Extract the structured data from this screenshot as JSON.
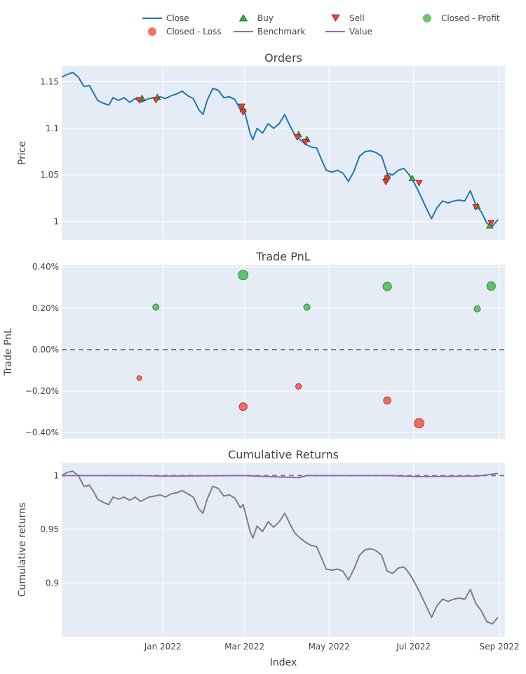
{
  "colors": {
    "plot_bg": "#e5ecf6",
    "grid": "#ffffff",
    "close": "#1f77b4",
    "buy": "#37B13F",
    "sell": "#EA4335",
    "profit": "#37B13F",
    "loss": "#EA4335",
    "benchmark": "#7f7f7f",
    "value": "#9467bd",
    "zero_line": "#808080"
  },
  "legend": {
    "close": "Close",
    "buy": "Buy",
    "sell": "Sell",
    "closed_profit": "Closed - Profit",
    "closed_loss": "Closed - Loss",
    "benchmark": "Benchmark",
    "value": "Value"
  },
  "x_axis": {
    "title": "Index",
    "range": [
      "2021-10-20",
      "2022-09-05"
    ],
    "ticks": [
      {
        "date": "2022-01-01",
        "label": "Jan 2022"
      },
      {
        "date": "2022-03-01",
        "label": "Mar 2022"
      },
      {
        "date": "2022-05-01",
        "label": "May 2022"
      },
      {
        "date": "2022-07-01",
        "label": "Jul 2022"
      },
      {
        "date": "2022-09-01",
        "label": "Sep 2022"
      }
    ]
  },
  "chart_data": [
    {
      "type": "line",
      "title": "Orders",
      "ylabel": "Price",
      "ylim": [
        0.98,
        1.167
      ],
      "yticks": [
        {
          "v": 1.0,
          "label": "1"
        },
        {
          "v": 1.05,
          "label": "1.05"
        },
        {
          "v": 1.1,
          "label": "1.1"
        },
        {
          "v": 1.15,
          "label": "1.15"
        }
      ],
      "series": [
        {
          "name": "Close",
          "points": [
            [
              "2021-10-20",
              1.155
            ],
            [
              "2021-10-24",
              1.158
            ],
            [
              "2021-10-28",
              1.16
            ],
            [
              "2021-11-01",
              1.155
            ],
            [
              "2021-11-05",
              1.145
            ],
            [
              "2021-11-09",
              1.146
            ],
            [
              "2021-11-12",
              1.138
            ],
            [
              "2021-11-15",
              1.13
            ],
            [
              "2021-11-19",
              1.127
            ],
            [
              "2021-11-23",
              1.125
            ],
            [
              "2021-11-26",
              1.133
            ],
            [
              "2021-11-30",
              1.13
            ],
            [
              "2021-12-04",
              1.133
            ],
            [
              "2021-12-08",
              1.128
            ],
            [
              "2021-12-12",
              1.132
            ],
            [
              "2021-12-16",
              1.128
            ],
            [
              "2021-12-19",
              1.13
            ],
            [
              "2021-12-22",
              1.132
            ],
            [
              "2021-12-26",
              1.133
            ],
            [
              "2021-12-30",
              1.134
            ],
            [
              "2022-01-03",
              1.132
            ],
            [
              "2022-01-07",
              1.135
            ],
            [
              "2022-01-11",
              1.137
            ],
            [
              "2022-01-15",
              1.14
            ],
            [
              "2022-01-19",
              1.135
            ],
            [
              "2022-01-23",
              1.132
            ],
            [
              "2022-01-27",
              1.12
            ],
            [
              "2022-01-30",
              1.115
            ],
            [
              "2022-02-02",
              1.13
            ],
            [
              "2022-02-06",
              1.143
            ],
            [
              "2022-02-10",
              1.141
            ],
            [
              "2022-02-14",
              1.133
            ],
            [
              "2022-02-18",
              1.134
            ],
            [
              "2022-02-22",
              1.131
            ],
            [
              "2022-02-26",
              1.12
            ],
            [
              "2022-02-28",
              1.124
            ],
            [
              "2022-03-02",
              1.112
            ],
            [
              "2022-03-05",
              1.095
            ],
            [
              "2022-03-07",
              1.088
            ],
            [
              "2022-03-10",
              1.1
            ],
            [
              "2022-03-14",
              1.095
            ],
            [
              "2022-03-18",
              1.105
            ],
            [
              "2022-03-22",
              1.1
            ],
            [
              "2022-03-26",
              1.105
            ],
            [
              "2022-03-30",
              1.115
            ],
            [
              "2022-04-02",
              1.105
            ],
            [
              "2022-04-06",
              1.094
            ],
            [
              "2022-04-10",
              1.088
            ],
            [
              "2022-04-14",
              1.083
            ],
            [
              "2022-04-18",
              1.08
            ],
            [
              "2022-04-22",
              1.079
            ],
            [
              "2022-04-26",
              1.065
            ],
            [
              "2022-04-29",
              1.055
            ],
            [
              "2022-05-03",
              1.053
            ],
            [
              "2022-05-07",
              1.055
            ],
            [
              "2022-05-11",
              1.052
            ],
            [
              "2022-05-15",
              1.043
            ],
            [
              "2022-05-19",
              1.054
            ],
            [
              "2022-05-23",
              1.07
            ],
            [
              "2022-05-27",
              1.075
            ],
            [
              "2022-05-31",
              1.076
            ],
            [
              "2022-06-04",
              1.074
            ],
            [
              "2022-06-08",
              1.07
            ],
            [
              "2022-06-12",
              1.052
            ],
            [
              "2022-06-16",
              1.05
            ],
            [
              "2022-06-20",
              1.055
            ],
            [
              "2022-06-24",
              1.057
            ],
            [
              "2022-06-28",
              1.05
            ],
            [
              "2022-07-02",
              1.04
            ],
            [
              "2022-07-06",
              1.028
            ],
            [
              "2022-07-10",
              1.015
            ],
            [
              "2022-07-14",
              1.003
            ],
            [
              "2022-07-18",
              1.015
            ],
            [
              "2022-07-22",
              1.022
            ],
            [
              "2022-07-26",
              1.02
            ],
            [
              "2022-07-30",
              1.022
            ],
            [
              "2022-08-03",
              1.023
            ],
            [
              "2022-08-07",
              1.022
            ],
            [
              "2022-08-11",
              1.033
            ],
            [
              "2022-08-15",
              1.018
            ],
            [
              "2022-08-19",
              1.01
            ],
            [
              "2022-08-23",
              0.998
            ],
            [
              "2022-08-27",
              0.995
            ],
            [
              "2022-08-31",
              1.002
            ]
          ]
        }
      ],
      "buy": [
        [
          "2021-12-17",
          1.132
        ],
        [
          "2021-12-28",
          1.133
        ],
        [
          "2022-02-28",
          1.12
        ],
        [
          "2022-04-09",
          1.093
        ],
        [
          "2022-04-15",
          1.088
        ],
        [
          "2022-06-12",
          1.048
        ],
        [
          "2022-06-30",
          1.046
        ],
        [
          "2022-08-16",
          1.016
        ],
        [
          "2022-08-25",
          0.995
        ]
      ],
      "sell": [
        [
          "2021-12-15",
          1.131
        ],
        [
          "2021-12-27",
          1.131
        ],
        [
          "2022-02-27",
          1.124
        ],
        [
          "2022-02-28",
          1.118
        ],
        [
          "2022-04-08",
          1.091
        ],
        [
          "2022-04-14",
          1.086
        ],
        [
          "2022-06-11",
          1.043
        ],
        [
          "2022-06-12",
          1.047
        ],
        [
          "2022-07-05",
          1.042
        ],
        [
          "2022-08-15",
          1.016
        ],
        [
          "2022-08-26",
          0.999
        ]
      ]
    },
    {
      "type": "scatter",
      "title": "Trade PnL",
      "ylabel": "Trade PnL",
      "ylim": [
        -0.0043,
        0.0041
      ],
      "yticks": [
        {
          "v": -0.004,
          "label": "−0.40%"
        },
        {
          "v": -0.002,
          "label": "−0.20%"
        },
        {
          "v": 0,
          "label": "0.00%"
        },
        {
          "v": 0.002,
          "label": "0.20%"
        },
        {
          "v": 0.004,
          "label": "0.40%"
        }
      ],
      "closed_profit": [
        [
          "2021-12-27",
          0.00205
        ],
        [
          "2022-02-28",
          0.0036
        ],
        [
          "2022-04-15",
          0.00205
        ],
        [
          "2022-06-12",
          0.00305
        ],
        [
          "2022-08-16",
          0.00197
        ],
        [
          "2022-08-26",
          0.00307
        ]
      ],
      "closed_loss": [
        [
          "2021-12-15",
          -0.00137
        ],
        [
          "2022-02-28",
          -0.00275
        ],
        [
          "2022-04-09",
          -0.00177
        ],
        [
          "2022-06-12",
          -0.00245
        ],
        [
          "2022-07-05",
          -0.00355
        ]
      ]
    },
    {
      "type": "line",
      "title": "Cumulative Returns",
      "ylabel": "Cumulative returns",
      "ylim": [
        0.85,
        1.012
      ],
      "yticks": [
        {
          "v": 0.9,
          "label": "0.9"
        },
        {
          "v": 0.95,
          "label": "0.95"
        },
        {
          "v": 1.0,
          "label": "1"
        }
      ],
      "series": [
        {
          "name": "Benchmark",
          "points": [
            [
              "2021-10-20",
              1.0
            ],
            [
              "2021-10-24",
              1.003
            ],
            [
              "2021-10-28",
              1.004
            ],
            [
              "2021-11-01",
              1.0
            ],
            [
              "2021-11-05",
              0.99
            ],
            [
              "2021-11-09",
              0.991
            ],
            [
              "2021-11-12",
              0.985
            ],
            [
              "2021-11-15",
              0.978
            ],
            [
              "2021-11-19",
              0.975
            ],
            [
              "2021-11-23",
              0.973
            ],
            [
              "2021-11-26",
              0.98
            ],
            [
              "2021-11-30",
              0.978
            ],
            [
              "2021-12-04",
              0.98
            ],
            [
              "2021-12-08",
              0.977
            ],
            [
              "2021-12-12",
              0.98
            ],
            [
              "2021-12-16",
              0.976
            ],
            [
              "2021-12-19",
              0.978
            ],
            [
              "2021-12-22",
              0.98
            ],
            [
              "2021-12-26",
              0.981
            ],
            [
              "2021-12-30",
              0.982
            ],
            [
              "2022-01-03",
              0.98
            ],
            [
              "2022-01-07",
              0.983
            ],
            [
              "2022-01-11",
              0.984
            ],
            [
              "2022-01-15",
              0.986
            ],
            [
              "2022-01-19",
              0.983
            ],
            [
              "2022-01-23",
              0.98
            ],
            [
              "2022-01-27",
              0.969
            ],
            [
              "2022-01-30",
              0.965
            ],
            [
              "2022-02-02",
              0.978
            ],
            [
              "2022-02-06",
              0.99
            ],
            [
              "2022-02-10",
              0.988
            ],
            [
              "2022-02-14",
              0.981
            ],
            [
              "2022-02-18",
              0.982
            ],
            [
              "2022-02-22",
              0.979
            ],
            [
              "2022-02-26",
              0.97
            ],
            [
              "2022-02-28",
              0.973
            ],
            [
              "2022-03-02",
              0.963
            ],
            [
              "2022-03-05",
              0.948
            ],
            [
              "2022-03-07",
              0.942
            ],
            [
              "2022-03-10",
              0.953
            ],
            [
              "2022-03-14",
              0.948
            ],
            [
              "2022-03-18",
              0.957
            ],
            [
              "2022-03-22",
              0.952
            ],
            [
              "2022-03-26",
              0.957
            ],
            [
              "2022-03-30",
              0.965
            ],
            [
              "2022-04-02",
              0.957
            ],
            [
              "2022-04-06",
              0.947
            ],
            [
              "2022-04-10",
              0.942
            ],
            [
              "2022-04-14",
              0.938
            ],
            [
              "2022-04-18",
              0.935
            ],
            [
              "2022-04-22",
              0.934
            ],
            [
              "2022-04-26",
              0.922
            ],
            [
              "2022-04-29",
              0.913
            ],
            [
              "2022-05-03",
              0.912
            ],
            [
              "2022-05-07",
              0.913
            ],
            [
              "2022-05-11",
              0.911
            ],
            [
              "2022-05-15",
              0.903
            ],
            [
              "2022-05-19",
              0.913
            ],
            [
              "2022-05-23",
              0.926
            ],
            [
              "2022-05-27",
              0.931
            ],
            [
              "2022-05-31",
              0.932
            ],
            [
              "2022-06-04",
              0.93
            ],
            [
              "2022-06-08",
              0.926
            ],
            [
              "2022-06-12",
              0.911
            ],
            [
              "2022-06-16",
              0.909
            ],
            [
              "2022-06-20",
              0.914
            ],
            [
              "2022-06-24",
              0.915
            ],
            [
              "2022-06-28",
              0.909
            ],
            [
              "2022-07-02",
              0.9
            ],
            [
              "2022-07-06",
              0.89
            ],
            [
              "2022-07-10",
              0.879
            ],
            [
              "2022-07-14",
              0.868
            ],
            [
              "2022-07-18",
              0.879
            ],
            [
              "2022-07-22",
              0.885
            ],
            [
              "2022-07-26",
              0.883
            ],
            [
              "2022-07-30",
              0.885
            ],
            [
              "2022-08-03",
              0.886
            ],
            [
              "2022-08-07",
              0.885
            ],
            [
              "2022-08-11",
              0.894
            ],
            [
              "2022-08-15",
              0.881
            ],
            [
              "2022-08-19",
              0.874
            ],
            [
              "2022-08-23",
              0.864
            ],
            [
              "2022-08-27",
              0.862
            ],
            [
              "2022-08-31",
              0.868
            ]
          ]
        },
        {
          "name": "Value",
          "points": [
            [
              "2021-10-20",
              1.0
            ],
            [
              "2021-12-15",
              1.0
            ],
            [
              "2022-01-01",
              0.9995
            ],
            [
              "2022-02-28",
              1.0
            ],
            [
              "2022-04-09",
              0.998
            ],
            [
              "2022-04-15",
              1.0
            ],
            [
              "2022-06-12",
              1.0
            ],
            [
              "2022-07-05",
              0.999
            ],
            [
              "2022-08-16",
              0.9995
            ],
            [
              "2022-08-31",
              1.002
            ]
          ]
        }
      ]
    }
  ]
}
